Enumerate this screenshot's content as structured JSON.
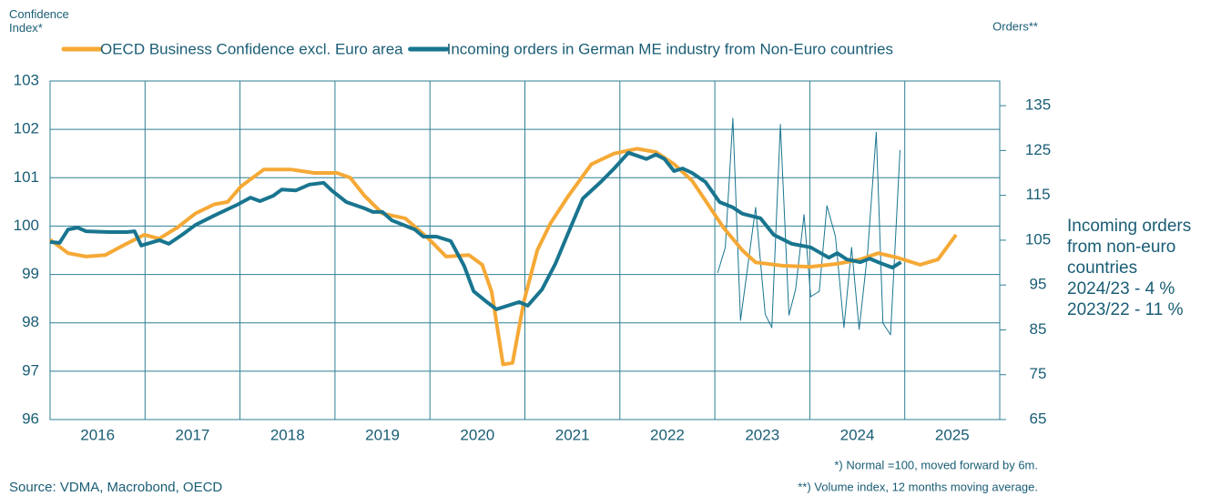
{
  "chart_data": {
    "type": "line",
    "y_label": "Confidence\nIndex*",
    "y2_label": "Orders**",
    "legend": "top",
    "xlim": [
      2016,
      2026
    ],
    "xgrid": [
      2016,
      2017,
      2018,
      2019,
      2020,
      2021,
      2022,
      2023,
      2024,
      2025,
      2026
    ],
    "xticks": [
      {
        "value": 2016.5,
        "label": "2016"
      },
      {
        "value": 2017.5,
        "label": "2017"
      },
      {
        "value": 2018.5,
        "label": "2018"
      },
      {
        "value": 2019.5,
        "label": "2019"
      },
      {
        "value": 2020.5,
        "label": "2020"
      },
      {
        "value": 2021.5,
        "label": "2021"
      },
      {
        "value": 2022.5,
        "label": "2022"
      },
      {
        "value": 2023.5,
        "label": "2023"
      },
      {
        "value": 2024.5,
        "label": "2024"
      },
      {
        "value": 2025.5,
        "label": "2025"
      }
    ],
    "ylim": [
      96,
      103
    ],
    "yticks": [
      96,
      97,
      98,
      99,
      100,
      101,
      102,
      103
    ],
    "y2lim": [
      65,
      140.5
    ],
    "y2ticks": [
      65,
      75,
      85,
      95,
      105,
      115,
      125,
      135
    ],
    "grid": true,
    "series": [
      {
        "name": "OECD Business Confidence excl. Euro area",
        "color": "#f5a936",
        "width": 4,
        "axis": "y",
        "x": [
          2016.0,
          2016.19,
          2016.38,
          2016.58,
          2016.77,
          2016.99,
          2017.15,
          2017.34,
          2017.53,
          2017.73,
          2017.87,
          2018.01,
          2018.25,
          2018.54,
          2018.78,
          2019.02,
          2019.16,
          2019.31,
          2019.5,
          2019.74,
          2019.98,
          2020.17,
          2020.41,
          2020.55,
          2020.65,
          2020.77,
          2020.87,
          2020.99,
          2021.13,
          2021.27,
          2021.46,
          2021.7,
          2021.94,
          2022.18,
          2022.38,
          2022.57,
          2022.76,
          2022.9,
          2023.09,
          2023.29,
          2023.43,
          2023.72,
          2024.01,
          2024.29,
          2024.53,
          2024.72,
          2024.92,
          2025.16,
          2025.35,
          2025.54
        ],
        "values": [
          99.72,
          99.44,
          99.37,
          99.4,
          99.6,
          99.82,
          99.74,
          99.97,
          100.26,
          100.45,
          100.5,
          100.82,
          101.17,
          101.17,
          101.1,
          101.1,
          101.0,
          100.63,
          100.26,
          100.16,
          99.75,
          99.37,
          99.4,
          99.2,
          98.64,
          97.14,
          97.17,
          98.45,
          99.5,
          100.06,
          100.63,
          101.28,
          101.5,
          101.6,
          101.53,
          101.28,
          100.94,
          100.53,
          99.97,
          99.5,
          99.25,
          99.18,
          99.16,
          99.22,
          99.31,
          99.44,
          99.35,
          99.2,
          99.31,
          99.82
        ]
      },
      {
        "name": "Incoming orders in German ME industry from Non-Euro countries",
        "color": "#19758f",
        "width": 4,
        "axis": "y2",
        "x": [
          2016.0,
          2016.1,
          2016.19,
          2016.29,
          2016.38,
          2016.62,
          2016.81,
          2016.89,
          2016.96,
          2017.15,
          2017.25,
          2017.39,
          2017.53,
          2017.73,
          2017.97,
          2018.11,
          2018.21,
          2018.35,
          2018.44,
          2018.59,
          2018.73,
          2018.88,
          2018.97,
          2019.12,
          2019.31,
          2019.4,
          2019.5,
          2019.6,
          2019.84,
          2019.93,
          2020.07,
          2020.22,
          2020.36,
          2020.46,
          2020.6,
          2020.7,
          2020.94,
          2021.03,
          2021.18,
          2021.32,
          2021.46,
          2021.61,
          2021.8,
          2021.94,
          2022.09,
          2022.28,
          2022.38,
          2022.47,
          2022.57,
          2022.66,
          2022.76,
          2022.9,
          2023.05,
          2023.19,
          2023.29,
          2023.48,
          2023.62,
          2023.81,
          2024.01,
          2024.1,
          2024.2,
          2024.29,
          2024.39,
          2024.53,
          2024.63,
          2024.72,
          2024.87,
          2024.96
        ],
        "values": [
          104.6,
          104.4,
          107.4,
          107.8,
          107.0,
          106.8,
          106.8,
          107.0,
          103.8,
          105.0,
          104.2,
          106.2,
          108.4,
          110.5,
          112.9,
          114.5,
          113.7,
          114.9,
          116.3,
          116.1,
          117.4,
          117.8,
          116.0,
          113.5,
          112.1,
          111.3,
          111.3,
          109.4,
          107.4,
          105.8,
          105.8,
          104.8,
          99.3,
          93.6,
          91.2,
          89.6,
          91.2,
          90.4,
          94.0,
          99.7,
          106.8,
          114.3,
          118.0,
          121.0,
          124.5,
          123.1,
          124.1,
          123.1,
          120.4,
          121.0,
          120.0,
          118.0,
          113.5,
          112.3,
          110.9,
          109.9,
          106.2,
          104.2,
          103.4,
          102.3,
          101.1,
          102.1,
          100.7,
          100.1,
          100.9,
          100.1,
          98.9,
          100.1
        ]
      },
      {
        "color": "#19758f",
        "width": 1,
        "axis": "y2",
        "x": [
          2023.03,
          2023.11,
          2023.19,
          2023.27,
          2023.35,
          2023.43,
          2023.53,
          2023.6,
          2023.69,
          2023.78,
          2023.85,
          2023.94,
          2024.01,
          2024.1,
          2024.18,
          2024.27,
          2024.36,
          2024.44,
          2024.52,
          2024.61,
          2024.7,
          2024.77,
          2024.85,
          2024.95
        ],
        "values": [
          97.7,
          103.4,
          132.2,
          87.1,
          99.7,
          112.3,
          88.5,
          85.5,
          130.8,
          88.3,
          94.0,
          110.7,
          92.4,
          93.6,
          112.7,
          105.8,
          85.5,
          103.4,
          85.1,
          102.5,
          129.1,
          86.5,
          83.9,
          125.1
        ]
      }
    ],
    "side_note": [
      "Incoming orders",
      "from non-euro",
      "countries",
      "2024/23    - 4 %",
      "2023/22  - 11 %"
    ],
    "footnotes": [
      "*) Normal =100, moved forward by 6m.",
      "**) Volume index, 12 months moving average."
    ],
    "source": "Source: VDMA, Macrobond, OECD"
  }
}
